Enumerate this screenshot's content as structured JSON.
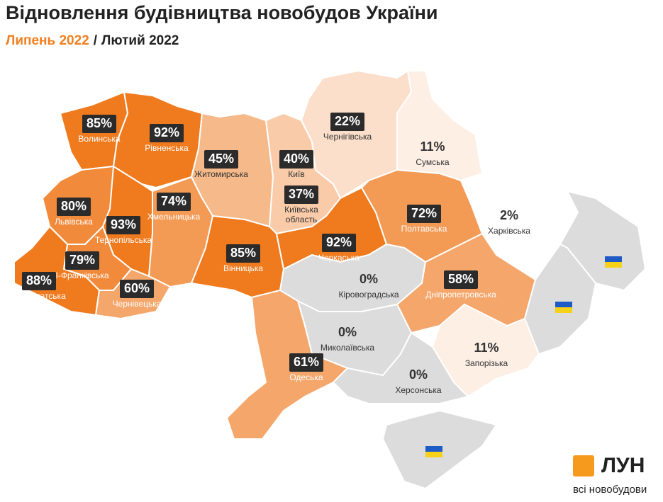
{
  "header": {
    "title": "Відновлення будівництва новобудов України",
    "subtitle": {
      "current": "Липень 2022",
      "separator": "/",
      "previous": "Лютий 2022"
    }
  },
  "regions": [
    {
      "name": "Волинська",
      "label": "85%",
      "color": "#f07a1e"
    },
    {
      "name": "Рівненська",
      "label": "92%",
      "color": "#f07a1e"
    },
    {
      "name": "Житомирська",
      "label": "45%",
      "color": "#f6b98a"
    },
    {
      "name": "Київ",
      "label": "40%",
      "color": "#f9cba8"
    },
    {
      "name": [
        "Київська",
        "область"
      ],
      "label": "37%",
      "color": "#f9cba8"
    },
    {
      "name": "Чернігівська",
      "label": "22%",
      "color": "#fcdfca"
    },
    {
      "name": "Сумська",
      "label": "11%",
      "color": "#fdefe4"
    },
    {
      "name": "Львівська",
      "label": "80%",
      "color": "#f28a3c"
    },
    {
      "name": "Тернопільська",
      "label": "93%",
      "color": "#f07a1e"
    },
    {
      "name": "Хмельницька",
      "label": "74%",
      "color": "#f39a55"
    },
    {
      "name": "Вінницька",
      "label": "85%",
      "color": "#f07a1e"
    },
    {
      "name": "Черкаська",
      "label": "92%",
      "color": "#f07a1e"
    },
    {
      "name": "Полтавська",
      "label": "72%",
      "color": "#f39a55"
    },
    {
      "name": "Харківська",
      "label": "2%",
      "color": "#ffffff"
    },
    {
      "name": "І-Франківська",
      "label": "79%",
      "color": "#f28a3c"
    },
    {
      "name": "Закарпатська",
      "label": "88%",
      "color": "#f07a1e"
    },
    {
      "name": "Чернівецька",
      "label": "60%",
      "color": "#f5a66a"
    },
    {
      "name": "Кіровоградська",
      "label": "0%",
      "color": "#dcdcdc"
    },
    {
      "name": "Дніпропетровська",
      "label": "58%",
      "color": "#f5a66a"
    },
    {
      "name": "Миколаївська",
      "label": "0%",
      "color": "#dcdcdc"
    },
    {
      "name": "Одеська",
      "label": "61%",
      "color": "#f5a66a"
    },
    {
      "name": "Запорізька",
      "label": "11%",
      "color": "#fdefe4"
    },
    {
      "name": "Херсонська",
      "label": "0%",
      "color": "#dcdcdc"
    }
  ],
  "logo": {
    "brand": "ЛУН",
    "tagline": "всі новобудови"
  }
}
